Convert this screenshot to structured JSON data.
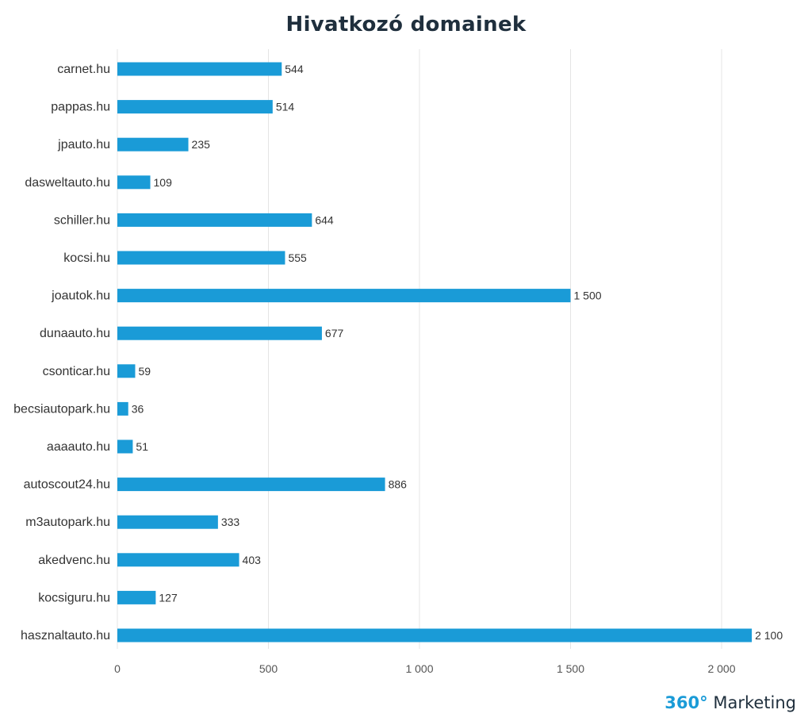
{
  "chart_data": {
    "type": "bar",
    "orientation": "horizontal",
    "title": "Hivatkozó domainek",
    "categories": [
      "carnet.hu",
      "pappas.hu",
      "jpauto.hu",
      "dasweltauto.hu",
      "schiller.hu",
      "kocsi.hu",
      "joautok.hu",
      "dunaauto.hu",
      "csonticar.hu",
      "becsiautopark.hu",
      "aaaauto.hu",
      "autoscout24.hu",
      "m3autopark.hu",
      "akedvenc.hu",
      "kocsiguru.hu",
      "hasznaltauto.hu"
    ],
    "values": [
      544,
      514,
      235,
      109,
      644,
      555,
      1500,
      677,
      59,
      36,
      51,
      886,
      333,
      403,
      127,
      2100
    ],
    "value_labels": [
      "544",
      "514",
      "235",
      "109",
      "644",
      "555",
      "1 500",
      "677",
      "59",
      "36",
      "51",
      "886",
      "333",
      "403",
      "127",
      "2 100"
    ],
    "xlim": [
      0,
      2100
    ],
    "xticks": [
      0,
      500,
      1000,
      1500,
      2000
    ],
    "xtick_labels": [
      "0",
      "500",
      "1 000",
      "1 500",
      "2 000"
    ],
    "grid": "vertical",
    "bar_color": "#1a9bd7"
  },
  "brand": {
    "number": "360°",
    "word": "Marketing"
  }
}
